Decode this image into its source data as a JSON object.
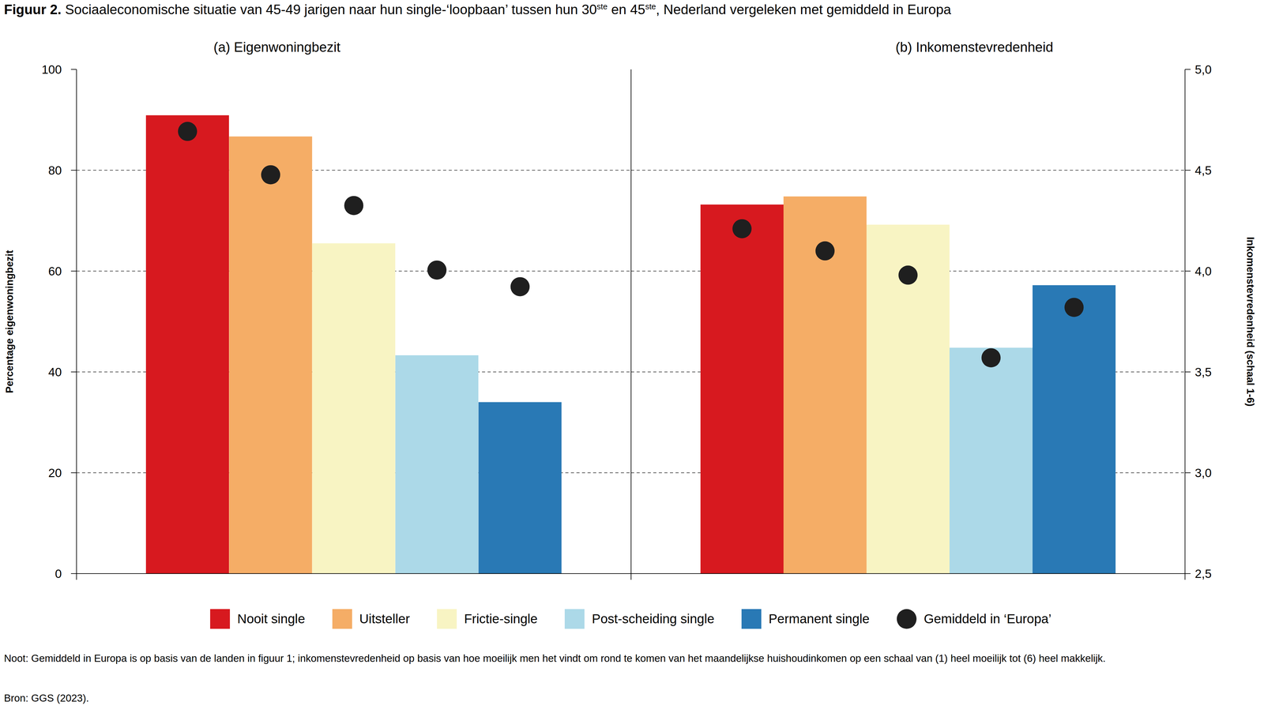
{
  "title": [
    {
      "text": "Figuur 2.",
      "bold": true
    },
    {
      "text": " Sociaaleconomische situatie van 45-49 jarigen naar hun single-‘loopbaan’ tussen hun 30"
    },
    {
      "text": "ste",
      "sup": true
    },
    {
      "text": " en 45"
    },
    {
      "text": "ste",
      "sup": true
    },
    {
      "text": ", Nederland vergeleken met gemiddeld in Europa"
    }
  ],
  "legend": "bottom",
  "note": "Noot: Gemiddeld in Europa is op basis van de landen in figuur 1; inkomenstevredenheid op basis van hoe moeilijk men het vindt om rond te komen van het maandelijkse huishoudinkomen op een schaal van (1) heel moeilijk tot (6) heel makkelijk.",
  "source": "Bron: GGS (2023).",
  "chart_data": [
    {
      "type": "bar",
      "title": "(a) Eigenwoningbezit",
      "y_label": "Percentage eigenwoningbezit",
      "categories": [
        "Nooit single",
        "Uitsteller",
        "Frictie-single",
        "Post-scheiding single",
        "Permanent single"
      ],
      "ylim": [
        0,
        100
      ],
      "yticks": [
        0,
        20,
        40,
        60,
        80,
        100
      ],
      "grid": true,
      "tick_labels": "y",
      "series": [
        {
          "type": "bar",
          "colors": [
            "#d7191f",
            "#f5ad66",
            "#f8f4c3",
            "#acd9e8",
            "#2979b5"
          ],
          "values": [
            90.9,
            86.7,
            65.5,
            43.3,
            34.0
          ]
        },
        {
          "name": "Gemiddeld in ‘Europa’",
          "type": "scatter",
          "marker": "circle",
          "color": "#1f1f1f",
          "values": [
            87.7,
            79.1,
            73.0,
            60.2,
            56.9
          ]
        }
      ]
    },
    {
      "type": "bar",
      "title": "(b) Inkomenstevredenheid",
      "y2_label": "Inkomenstevredenheid (schaal 1-6)",
      "categories": [
        "Nooit single",
        "Uitsteller",
        "Frictie-single",
        "Post-scheiding single",
        "Permanent single"
      ],
      "y2lim": [
        2.5,
        5.0
      ],
      "y2ticks": [
        {
          "value": 2.5,
          "label": "2,5"
        },
        {
          "value": 3.0,
          "label": "3,0"
        },
        {
          "value": 3.5,
          "label": "3,5"
        },
        {
          "value": 4.0,
          "label": "4,0"
        },
        {
          "value": 4.5,
          "label": "4,5"
        },
        {
          "value": 5.0,
          "label": "5,0"
        }
      ],
      "grid": true,
      "tick_labels": "y",
      "series": [
        {
          "type": "bar",
          "axis": "y2",
          "colors": [
            "#d7191f",
            "#f5ad66",
            "#f8f4c3",
            "#acd9e8",
            "#2979b5"
          ],
          "values": [
            4.33,
            4.37,
            4.23,
            3.62,
            3.93
          ]
        },
        {
          "name": "Gemiddeld in ‘Europa’",
          "type": "scatter",
          "axis": "y2",
          "marker": "circle",
          "color": "#1f1f1f",
          "values": [
            4.21,
            4.1,
            3.98,
            3.57,
            3.82
          ]
        }
      ]
    }
  ]
}
